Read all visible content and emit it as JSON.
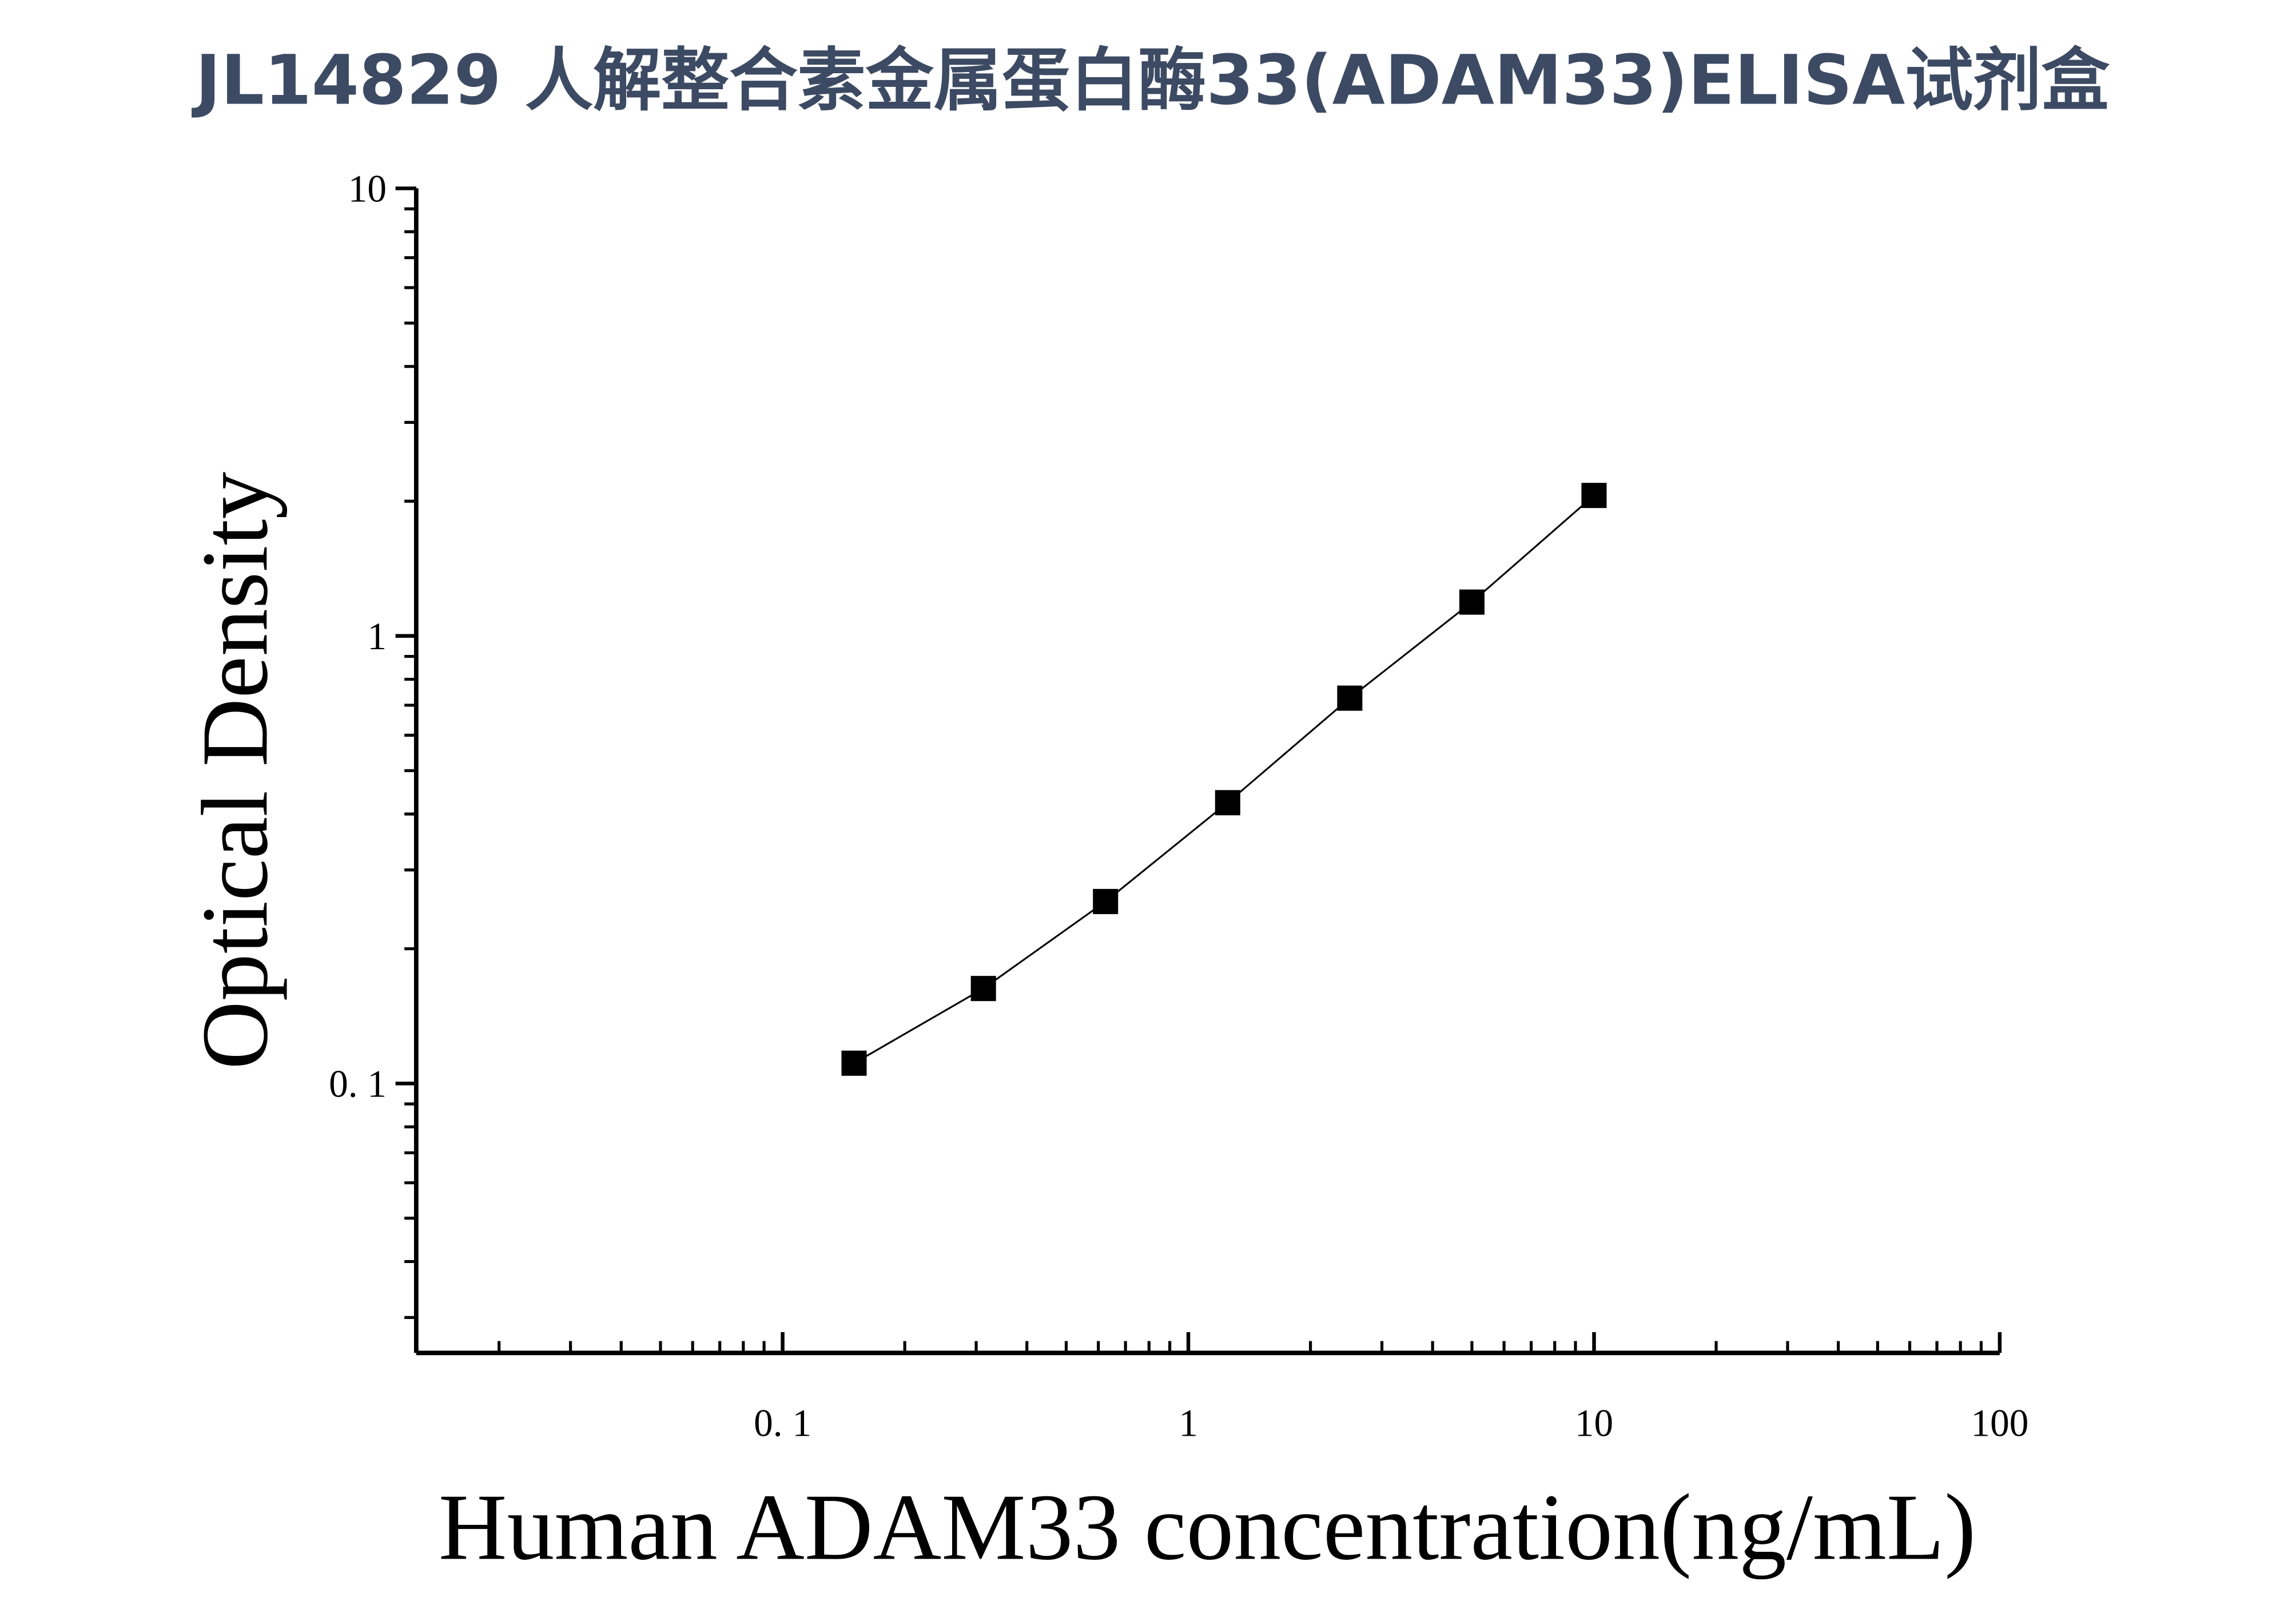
{
  "chart_data": {
    "type": "scatter",
    "title": "JL14829 人解整合素金属蛋白酶33(ADAM33)ELISA试剂盒",
    "x_label": "Human ADAM33 concentration(ng/mL)",
    "y_label": "Optical Density",
    "x_scale": "log",
    "y_scale": "log",
    "xlim": [
      0.0125,
      100
    ],
    "ylim": [
      0.025,
      10
    ],
    "xticks": [
      {
        "value": 0.1,
        "label": "0. 1"
      },
      1,
      10,
      100
    ],
    "yticks": [
      {
        "value": 0.1,
        "label": "0. 1"
      },
      1,
      10
    ],
    "xticks_minor": [
      0.02,
      0.03,
      0.04,
      0.05,
      0.06,
      0.07,
      0.08,
      0.09,
      0.2,
      0.3,
      0.4,
      0.5,
      0.6,
      0.7,
      0.8,
      0.9,
      2,
      3,
      4,
      5,
      6,
      7,
      8,
      9,
      20,
      30,
      40,
      50,
      60,
      70,
      80,
      90
    ],
    "yticks_minor": [
      0.03,
      0.04,
      0.05,
      0.06,
      0.07,
      0.08,
      0.09,
      0.2,
      0.3,
      0.4,
      0.5,
      0.6,
      0.7,
      0.8,
      0.9,
      2,
      3,
      4,
      5,
      6,
      7,
      8,
      9
    ],
    "series": [
      {
        "color": "#000000",
        "x": [
          0.15,
          0.3125,
          0.625,
          1.25,
          2.5,
          5,
          10
        ],
        "values": [
          0.111,
          0.163,
          0.255,
          0.424,
          0.726,
          1.19,
          2.06
        ]
      }
    ]
  }
}
